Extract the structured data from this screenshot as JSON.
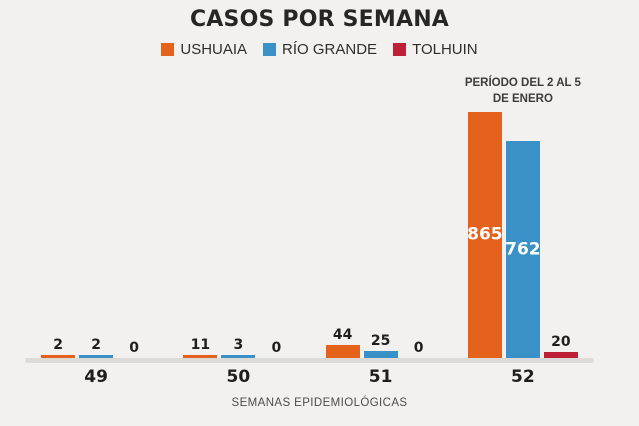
{
  "chart_data": {
    "type": "bar",
    "title": "CASOS POR SEMANA",
    "categories": [
      "49",
      "50",
      "51",
      "52"
    ],
    "series": [
      {
        "name": "USHUAIA",
        "color": "#e4621b",
        "values": [
          2,
          11,
          44,
          865
        ]
      },
      {
        "name": "RÍO GRANDE",
        "color": "#3a91c7",
        "values": [
          2,
          3,
          25,
          762
        ]
      },
      {
        "name": "TOLHUIN",
        "color": "#be2137",
        "values": [
          0,
          0,
          0,
          20
        ]
      }
    ],
    "xlabel": "SEMANAS EPIDEMIOLÓGICAS",
    "ylabel": "",
    "annotation": "PERÍODO DEL 2 AL 5\nDE ENERO",
    "ylim": [
      0,
      865
    ],
    "grid": false,
    "legend_position": "top",
    "value_labels": true
  }
}
